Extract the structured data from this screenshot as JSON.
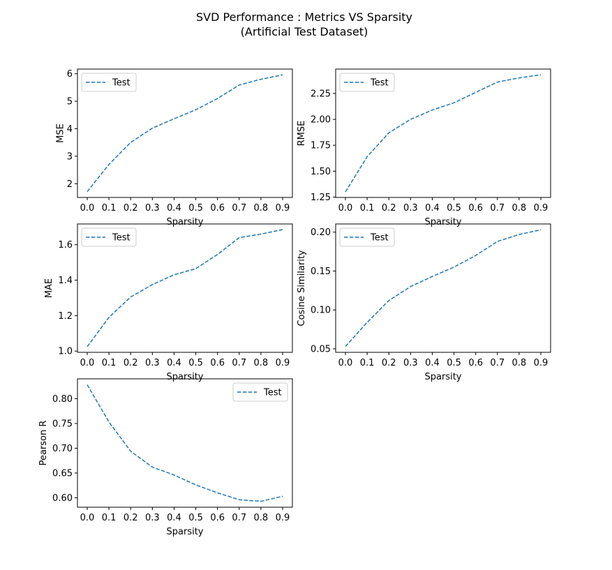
{
  "figure": {
    "title_line1": "SVD Performance : Metrics VS Sparsity",
    "title_line2": "(Artificial Test Dataset)"
  },
  "colors": {
    "series": "#1f77b4",
    "axes": "#000000",
    "legend_border": "#cccccc"
  },
  "chart_data": [
    {
      "type": "line",
      "x": [
        0.0,
        0.1,
        0.2,
        0.3,
        0.4,
        0.5,
        0.6,
        0.7,
        0.8,
        0.9
      ],
      "series": [
        {
          "name": "Test",
          "style": "dashed",
          "values": [
            1.71,
            2.7,
            3.5,
            4.02,
            4.36,
            4.69,
            5.1,
            5.59,
            5.8,
            5.96
          ]
        }
      ],
      "xlabel": "Sparsity",
      "ylabel": "MSE",
      "xticks": [
        "0.0",
        "0.1",
        "0.2",
        "0.3",
        "0.4",
        "0.5",
        "0.6",
        "0.7",
        "0.8",
        "0.9"
      ],
      "yticks": [
        "2",
        "3",
        "4",
        "5",
        "6"
      ],
      "xlim": [
        -0.045,
        0.945
      ],
      "ylim": [
        1.5,
        6.17
      ],
      "legend": "upper left",
      "grid": false
    },
    {
      "type": "line",
      "x": [
        0.0,
        0.1,
        0.2,
        0.3,
        0.4,
        0.5,
        0.6,
        0.7,
        0.8,
        0.9
      ],
      "series": [
        {
          "name": "Test",
          "style": "dashed",
          "values": [
            1.3,
            1.64,
            1.87,
            2.0,
            2.09,
            2.16,
            2.26,
            2.36,
            2.4,
            2.43
          ]
        }
      ],
      "xlabel": "Sparsity",
      "ylabel": "RMSE",
      "xticks": [
        "0.0",
        "0.1",
        "0.2",
        "0.3",
        "0.4",
        "0.5",
        "0.6",
        "0.7",
        "0.8",
        "0.9"
      ],
      "yticks": [
        "1.25",
        "1.50",
        "1.75",
        "2.00",
        "2.25"
      ],
      "xlim": [
        -0.045,
        0.945
      ],
      "ylim": [
        1.247,
        2.485
      ],
      "legend": "upper left",
      "grid": false
    },
    {
      "type": "line",
      "x": [
        0.0,
        0.1,
        0.2,
        0.3,
        0.4,
        0.5,
        0.6,
        0.7,
        0.8,
        0.9
      ],
      "series": [
        {
          "name": "Test",
          "style": "dashed",
          "values": [
            1.025,
            1.19,
            1.305,
            1.375,
            1.43,
            1.465,
            1.545,
            1.64,
            1.66,
            1.685
          ]
        }
      ],
      "xlabel": "Sparsity",
      "ylabel": "MAE",
      "xticks": [
        "0.0",
        "0.1",
        "0.2",
        "0.3",
        "0.4",
        "0.5",
        "0.6",
        "0.7",
        "0.8",
        "0.9"
      ],
      "yticks": [
        "1.0",
        "1.2",
        "1.4",
        "1.6"
      ],
      "xlim": [
        -0.045,
        0.945
      ],
      "ylim": [
        0.993,
        1.717
      ],
      "legend": "upper left",
      "grid": false
    },
    {
      "type": "line",
      "x": [
        0.0,
        0.1,
        0.2,
        0.3,
        0.4,
        0.5,
        0.6,
        0.7,
        0.8,
        0.9
      ],
      "series": [
        {
          "name": "Test",
          "style": "dashed",
          "values": [
            0.053,
            0.084,
            0.112,
            0.13,
            0.143,
            0.155,
            0.17,
            0.188,
            0.197,
            0.203
          ]
        }
      ],
      "xlabel": "Sparsity",
      "ylabel": "Cosine Similarity",
      "xticks": [
        "0.0",
        "0.1",
        "0.2",
        "0.3",
        "0.4",
        "0.5",
        "0.6",
        "0.7",
        "0.8",
        "0.9"
      ],
      "yticks": [
        "0.05",
        "0.10",
        "0.15",
        "0.20"
      ],
      "xlim": [
        -0.045,
        0.945
      ],
      "ylim": [
        0.0455,
        0.2105
      ],
      "legend": "upper left",
      "grid": false
    },
    {
      "type": "line",
      "x": [
        0.0,
        0.1,
        0.2,
        0.3,
        0.4,
        0.5,
        0.6,
        0.7,
        0.8,
        0.9
      ],
      "series": [
        {
          "name": "Test",
          "style": "dashed",
          "values": [
            0.828,
            0.753,
            0.694,
            0.662,
            0.646,
            0.626,
            0.61,
            0.596,
            0.593,
            0.603
          ]
        }
      ],
      "xlabel": "Sparsity",
      "ylabel": "Pearson R",
      "xticks": [
        "0.0",
        "0.1",
        "0.2",
        "0.3",
        "0.4",
        "0.5",
        "0.6",
        "0.7",
        "0.8",
        "0.9"
      ],
      "yticks": [
        "0.60",
        "0.65",
        "0.70",
        "0.75",
        "0.80"
      ],
      "xlim": [
        -0.045,
        0.945
      ],
      "ylim": [
        0.581,
        0.84
      ],
      "legend": "upper right",
      "grid": false
    }
  ]
}
